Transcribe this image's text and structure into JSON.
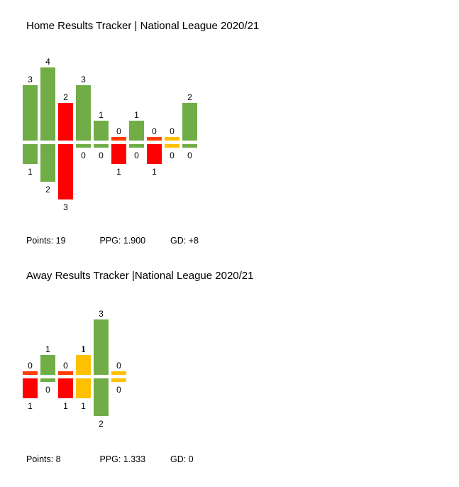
{
  "window": {
    "background": "#FFFFFF"
  },
  "colors": {
    "win_green": "#70AD47",
    "loss_red": "#FF0000",
    "loss_zero_stub_red": "#FF3B00",
    "draw_amber": "#FFC000",
    "label_text": "#000000"
  },
  "chart_data": [
    {
      "type": "bar",
      "variant": "diverging-results-tracker",
      "title": "Home Results Tracker | National League 2020/21",
      "grid": false,
      "legend_position": "none",
      "axis_labels_visible": false,
      "match_count": 10,
      "series": [
        {
          "name": "goals_for_up",
          "values": [
            3,
            4,
            2,
            3,
            1,
            0,
            1,
            0,
            0,
            2
          ]
        },
        {
          "name": "goals_against_down",
          "values": [
            1,
            2,
            3,
            0,
            0,
            1,
            0,
            1,
            0,
            0
          ]
        }
      ],
      "results": [
        "win",
        "win",
        "loss",
        "win",
        "win",
        "loss",
        "win",
        "loss",
        "draw",
        "win"
      ],
      "value_labels": "every bar labeled with its numeric value",
      "stats": {
        "points": "Points: 19",
        "ppg": "PPG: 1.900",
        "gd": "GD: +8"
      }
    },
    {
      "type": "bar",
      "variant": "diverging-results-tracker",
      "title": "Away Results Tracker |National League 2020/21",
      "grid": false,
      "legend_position": "none",
      "axis_labels_visible": false,
      "match_count": 6,
      "series": [
        {
          "name": "goals_for_up",
          "values": [
            0,
            1,
            0,
            1,
            3,
            0
          ]
        },
        {
          "name": "goals_against_down",
          "values": [
            1,
            0,
            1,
            1,
            2,
            0
          ]
        }
      ],
      "results": [
        "loss",
        "win",
        "loss",
        "draw",
        "win",
        "draw"
      ],
      "emphasized_gf_label_index": 3,
      "value_labels": "every bar labeled with its numeric value",
      "stats": {
        "points": "Points: 8",
        "ppg": "PPG: 1.333",
        "gd": "GD: 0"
      }
    }
  ]
}
